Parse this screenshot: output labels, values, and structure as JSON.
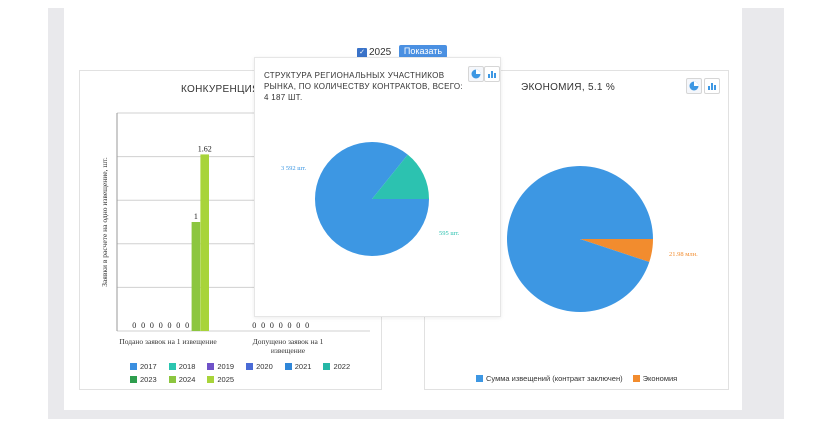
{
  "filter": {
    "year_label": "2025",
    "show_button": "Показать"
  },
  "left_panel": {
    "title": "КОНКУРЕНЦИЯ",
    "chart_data": {
      "type": "bar",
      "ylabel": "Заявки в расчете на одно извещение, шт.",
      "categories": [
        "Подано заявок на 1 извещение",
        "Допущено заявок на 1 извещение"
      ],
      "series": [
        {
          "name": "2017",
          "color": "#3a8fe0",
          "values": [
            0,
            0
          ]
        },
        {
          "name": "2018",
          "color": "#2bc5b0",
          "values": [
            0,
            0
          ]
        },
        {
          "name": "2019",
          "color": "#6f52c8",
          "values": [
            0,
            0
          ]
        },
        {
          "name": "2020",
          "color": "#4a6bd6",
          "values": [
            0,
            0
          ]
        },
        {
          "name": "2021",
          "color": "#2f86d8",
          "values": [
            0,
            0
          ]
        },
        {
          "name": "2022",
          "color": "#25b7a6",
          "values": [
            0,
            0
          ]
        },
        {
          "name": "2023",
          "color": "#2e9e4e",
          "values": [
            0,
            0
          ]
        },
        {
          "name": "2024",
          "color": "#8cc63f",
          "values": [
            1,
            null
          ]
        },
        {
          "name": "2025",
          "color": "#a8d43a",
          "values": [
            1.62,
            null
          ]
        }
      ],
      "data_labels_cat0": [
        "0",
        "0",
        "0",
        "0",
        "0",
        "0",
        "0",
        "1",
        "1.62"
      ],
      "data_labels_cat1": [
        "0",
        "0",
        "0",
        "0",
        "0",
        "0",
        "0"
      ],
      "ylim": [
        0,
        2
      ]
    }
  },
  "mid_panel": {
    "title": "СТРУКТУРА РЕГИОНАЛЬНЫХ УЧАСТНИКОВ РЫНКА, ПО КОЛИЧЕСТВУ КОНТРАКТОВ, ВСЕГО: 4 187 ШТ.",
    "chart_data": {
      "type": "pie",
      "slices": [
        {
          "label": "3 592 шт.",
          "value": 3592,
          "color": "#3d97e3"
        },
        {
          "label": "595 шт.",
          "value": 595,
          "color": "#2cc2b0"
        }
      ]
    }
  },
  "right_panel": {
    "title": "ЭКОНОМИЯ, 5.1 %",
    "chart_data": {
      "type": "pie",
      "slices": [
        {
          "label": "Сумма извещений (контракт заключен)",
          "value": 94.9,
          "color": "#3d97e3"
        },
        {
          "label": "Экономия",
          "value": 5.1,
          "color": "#f28c2e"
        }
      ],
      "data_label": "21.98 млн."
    },
    "legend": [
      "Сумма извещений (контракт заключен)",
      "Экономия"
    ]
  },
  "icons": {
    "pie_icon": "pie-chart-icon",
    "bar_icon": "bar-chart-icon"
  }
}
